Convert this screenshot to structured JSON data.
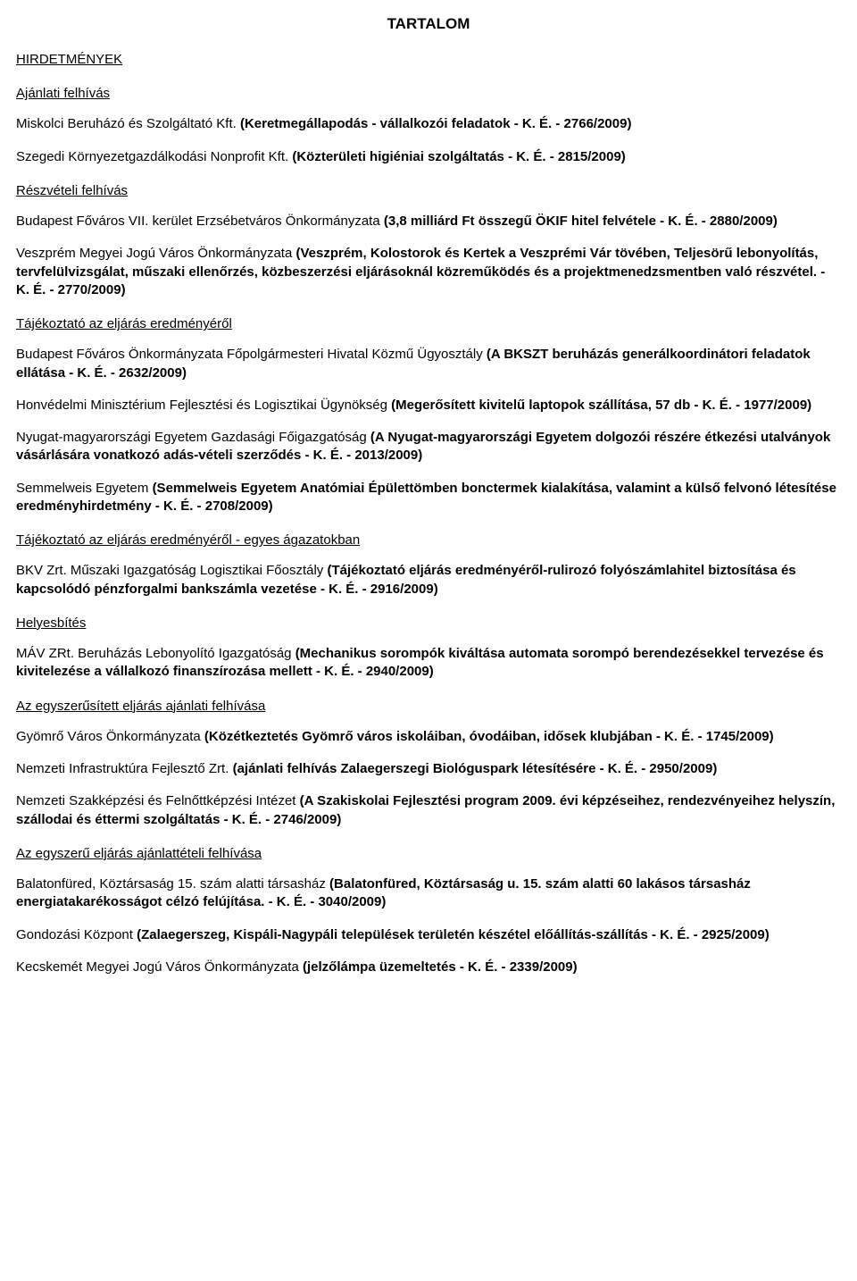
{
  "title": "TARTALOM",
  "cat1": "HIRDETMÉNYEK",
  "sub1": "Ajánlati felhívás",
  "e1_lead": "Miskolci Beruházó és Szolgáltató Kft. ",
  "e1_bold": "(Keretmegállapodás - vállalkozói feladatok - K. É. - 2766/2009)",
  "e2_lead": "Szegedi Környezetgazdálkodási Nonprofit Kft. ",
  "e2_bold": "(Közterületi higiéniai szolgáltatás - K. É. - 2815/2009)",
  "sub2": "Részvételi felhívás",
  "e3_lead": "Budapest Főváros VII. kerület Erzsébetváros Önkormányzata ",
  "e3_bold": "(3,8 milliárd Ft összegű ÖKIF hitel felvétele - K. É. - 2880/2009)",
  "e4_lead": "Veszprém Megyei Jogú Város Önkormányzata ",
  "e4_bold": "(Veszprém, Kolostorok és Kertek a Veszprémi Vár tövében, Teljesörű lebonyolítás, tervfelülvizsgálat, műszaki ellenőrzés, közbeszerzési eljárásoknál közreműködés és a projektmenedzsmentben való részvétel. - K. É. - 2770/2009)",
  "sub3": "Tájékoztató az eljárás eredményéről",
  "e5_lead": "Budapest Főváros Önkormányzata Főpolgármesteri Hivatal Közmű Ügyosztály ",
  "e5_bold": "(A BKSZT beruházás generálkoordinátori feladatok ellátása - K. É. - 2632/2009)",
  "e6_lead": "Honvédelmi Minisztérium Fejlesztési és Logisztikai Ügynökség ",
  "e6_bold": "(Megerősített kivitelű laptopok szállítása, 57 db - K. É. - 1977/2009)",
  "e7_lead": "Nyugat-magyarországi Egyetem Gazdasági Főigazgatóság ",
  "e7_bold": "(A Nyugat-magyarországi Egyetem dolgozói részére étkezési utalványok vásárlására vonatkozó adás-vételi szerződés - K. É. - 2013/2009)",
  "e8_lead": "Semmelweis Egyetem ",
  "e8_bold": "(Semmelweis Egyetem Anatómiai Épülettömben bonctermek kialakítása, valamint a külső felvonó létesítése eredményhirdetmény - K. É. - 2708/2009)",
  "sub4": "Tájékoztató az eljárás eredményéről - egyes ágazatokban",
  "e9_lead": "BKV Zrt. Műszaki Igazgatóság Logisztikai Főosztály ",
  "e9_bold": "(Tájékoztató eljárás eredményéről-rulirozó folyószámlahitel biztosítása és kapcsolódó pénzforgalmi bankszámla vezetése - K. É. - 2916/2009)",
  "sub5": "Helyesbítés",
  "e10_lead": "MÁV ZRt. Beruházás Lebonyolító Igazgatóság ",
  "e10_bold": "(Mechanikus sorompók kiváltása automata sorompó berendezésekkel tervezése és kivitelezése a vállalkozó finanszírozása mellett - K. É. - 2940/2009)",
  "sub6": "Az egyszerűsített eljárás ajánlati felhívása",
  "e11_lead": "Gyömrő Város Önkormányzata ",
  "e11_bold": "(Közétkeztetés Gyömrő város iskoláiban, óvodáiban, idősek klubjában - K. É. - 1745/2009)",
  "e12_lead": "Nemzeti Infrastruktúra Fejlesztő Zrt. ",
  "e12_bold": "(ajánlati felhívás Zalaegerszegi Biológuspark létesítésére - K. É. - 2950/2009)",
  "e13_lead": "Nemzeti Szakképzési és Felnőttképzési Intézet ",
  "e13_bold": "(A Szakiskolai Fejlesztési program 2009. évi képzéseihez, rendezvényeihez helyszín, szállodai és éttermi szolgáltatás - K. É. - 2746/2009)",
  "sub7": "Az egyszerű eljárás ajánlattételi felhívása",
  "e14_lead": "Balatonfüred, Köztársaság 15. szám alatti társasház ",
  "e14_bold": "(Balatonfüred, Köztársaság u. 15. szám alatti 60 lakásos társasház energiatakarékosságot célzó felújítása. - K. É. - 3040/2009)",
  "e15_lead": "Gondozási Központ ",
  "e15_bold": "(Zalaegerszeg, Kispáli-Nagypáli települések területén készétel előállítás-szállítás - K. É. - 2925/2009)",
  "e16_lead": "Kecskemét Megyei Jogú Város Önkormányzata ",
  "e16_bold": "(jelzőlámpa üzemeltetés - K. É. - 2339/2009)"
}
